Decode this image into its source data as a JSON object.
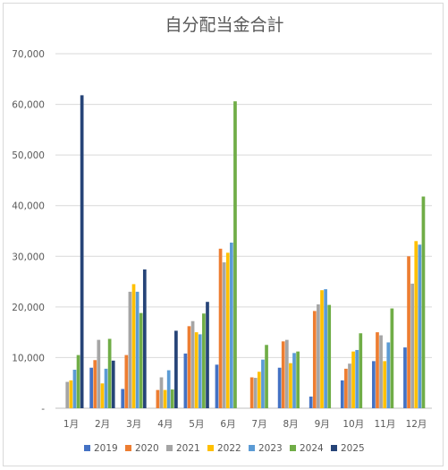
{
  "chart_data": {
    "type": "bar",
    "title": "自分配当金合計",
    "xlabel": "",
    "ylabel": "",
    "categories": [
      "1月",
      "2月",
      "3月",
      "4月",
      "5月",
      "6月",
      "7月",
      "8月",
      "9月",
      "10月",
      "11月",
      "12月"
    ],
    "ylim": [
      0,
      70000
    ],
    "yticks": [
      0,
      10000,
      20000,
      30000,
      40000,
      50000,
      60000,
      70000
    ],
    "ytick_labels": [
      "-",
      "10,000",
      "20,000",
      "30,000",
      "40,000",
      "50,000",
      "60,000",
      "70,000"
    ],
    "grid": true,
    "legend_position": "bottom",
    "series": [
      {
        "name": "2019",
        "color": "#4472c4",
        "values": [
          0,
          8000,
          3800,
          0,
          10800,
          8600,
          0,
          8000,
          2300,
          5500,
          9300,
          12000
        ]
      },
      {
        "name": "2020",
        "color": "#ed7d31",
        "values": [
          0,
          9500,
          10500,
          3600,
          16200,
          31500,
          6100,
          13200,
          19200,
          7800,
          15000,
          30000
        ]
      },
      {
        "name": "2021",
        "color": "#a5a5a5",
        "values": [
          5200,
          13500,
          23000,
          6100,
          17200,
          28800,
          6000,
          13500,
          20500,
          8800,
          14400,
          24600
        ]
      },
      {
        "name": "2022",
        "color": "#ffc000",
        "values": [
          5500,
          4900,
          24500,
          3600,
          15000,
          30700,
          7200,
          8900,
          23300,
          11200,
          9300,
          33000
        ]
      },
      {
        "name": "2023",
        "color": "#5b9bd5",
        "values": [
          7600,
          7800,
          23000,
          7500,
          14600,
          32700,
          9600,
          10900,
          23500,
          11500,
          13000,
          32300
        ]
      },
      {
        "name": "2024",
        "color": "#70ad47",
        "values": [
          10500,
          13700,
          18800,
          3700,
          18700,
          60600,
          12500,
          11200,
          20400,
          14800,
          19700,
          41800
        ]
      },
      {
        "name": "2025",
        "color": "#264478",
        "values": [
          61800,
          9400,
          27400,
          15300,
          21000,
          0,
          0,
          0,
          0,
          0,
          0,
          0
        ]
      }
    ]
  }
}
